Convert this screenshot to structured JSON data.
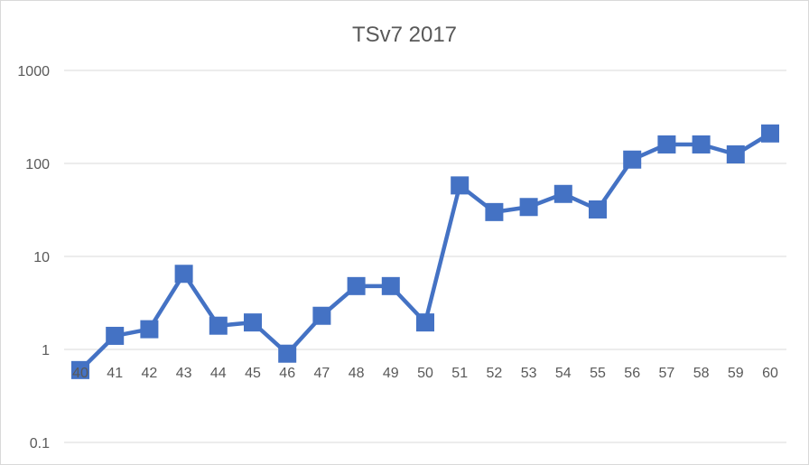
{
  "chart_data": {
    "type": "line",
    "title": "TSv7 2017",
    "xlabel": "",
    "ylabel": "",
    "yscale": "log",
    "ylim": [
      0.1,
      1000
    ],
    "y_ticks": [
      "0.1",
      "1",
      "10",
      "100",
      "1000"
    ],
    "grid": true,
    "legend": "none",
    "categories": [
      "40",
      "41",
      "42",
      "43",
      "44",
      "45",
      "46",
      "47",
      "48",
      "49",
      "50",
      "51",
      "52",
      "53",
      "54",
      "55",
      "56",
      "57",
      "58",
      "59",
      "60"
    ],
    "series": [
      {
        "color": "#4472c4",
        "marker": "square",
        "values": [
          0.6,
          1.4,
          1.65,
          6.5,
          1.8,
          1.95,
          0.9,
          2.3,
          4.8,
          4.8,
          1.95,
          58,
          30,
          34,
          47,
          32,
          110,
          160,
          160,
          125,
          210
        ]
      }
    ]
  },
  "colors": {
    "series": "#4472c4",
    "grid": "#d9d9d9",
    "text": "#595959"
  }
}
